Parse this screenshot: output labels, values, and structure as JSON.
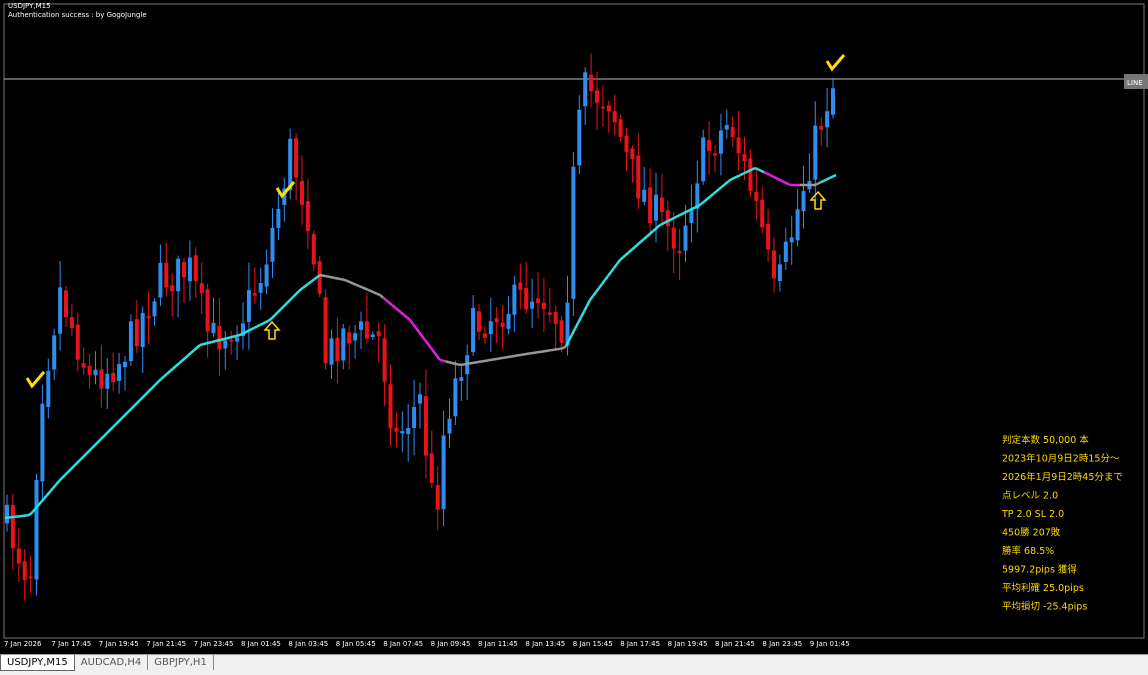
{
  "header": {
    "symbol": "USDJPY,M15",
    "auth": "Authentication success : by GogoJungle"
  },
  "line_label": "LINE",
  "time_axis": [
    "7 Jan 2026",
    "7 Jan 17:45",
    "7 Jan 19:45",
    "7 Jan 21:45",
    "7 Jan 23:45",
    "8 Jan 01:45",
    "8 Jan 03:45",
    "8 Jan 05:45",
    "8 Jan 07:45",
    "8 Jan 09:45",
    "8 Jan 11:45",
    "8 Jan 13:45",
    "8 Jan 15:45",
    "8 Jan 17:45",
    "8 Jan 19:45",
    "8 Jan 21:45",
    "8 Jan 23:45",
    "9 Jan 01:45"
  ],
  "stats": [
    "判定本数 50,000 本",
    "2023年10月9日2時15分～",
    "2026年1月9日2時45分まで",
    "点レベル 2.0",
    "TP 2.0 SL 2.0",
    "450勝 207敗",
    "勝率 68.5%",
    "5997.2pips 獲得",
    "平均利確 25.0pips",
    "平均損切 -25.4pips"
  ],
  "tabs": [
    "USDJPY,M15",
    "AUDCAD,H4",
    "GBPJPY,H1"
  ]
}
